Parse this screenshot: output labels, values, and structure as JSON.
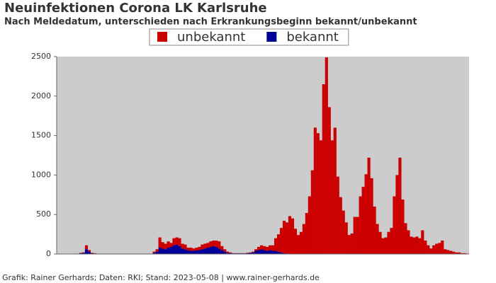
{
  "chart_data": {
    "type": "stacked-bar",
    "title": "Neuinfektionen Corona LK Karlsruhe",
    "subtitle": "Nach Meldedatum, unterschieden nach Erkrankungsbeginn bekannt/unbekannt",
    "footer": "Grafik: Rainer Gerhards; Daten: RKI; Stand: 2023-05-08 | www.rainer-gerhards.de",
    "ylim": [
      0,
      2500
    ],
    "yticks": [
      0,
      500,
      1000,
      1500,
      2000,
      2500
    ],
    "grid": false,
    "background": "#cccccc",
    "series": [
      {
        "name": "unbekannt",
        "color": "#cc0000",
        "values": [
          0,
          0,
          0,
          0,
          0,
          0,
          0,
          0,
          5,
          5,
          50,
          20,
          5,
          5,
          0,
          0,
          0,
          0,
          0,
          0,
          0,
          0,
          0,
          0,
          0,
          0,
          0,
          0,
          0,
          0,
          0,
          0,
          0,
          0,
          15,
          30,
          130,
          80,
          70,
          80,
          50,
          90,
          90,
          100,
          60,
          60,
          35,
          40,
          30,
          35,
          40,
          60,
          60,
          60,
          70,
          70,
          80,
          90,
          50,
          30,
          15,
          10,
          2,
          2,
          2,
          2,
          2,
          5,
          5,
          10,
          20,
          40,
          50,
          50,
          50,
          60,
          70,
          160,
          220,
          310,
          410,
          395,
          480,
          450,
          320,
          240,
          280,
          380,
          520,
          730,
          1060,
          1600,
          1530,
          1440,
          2150,
          2490,
          1860,
          1440,
          1600,
          980,
          720,
          550,
          400,
          240,
          260,
          470,
          470,
          730,
          850,
          1010,
          1220,
          960,
          600,
          380,
          280,
          200,
          210,
          280,
          330,
          730,
          1000,
          1220,
          690,
          390,
          300,
          220,
          210,
          220,
          200,
          300,
          170,
          110,
          70,
          110,
          130,
          140,
          170,
          60,
          50,
          40,
          30,
          20,
          20,
          10,
          10,
          5
        ]
      },
      {
        "name": "bekannt",
        "color": "#000099",
        "values": [
          0,
          0,
          0,
          0,
          0,
          0,
          0,
          0,
          10,
          15,
          60,
          30,
          10,
          5,
          5,
          0,
          5,
          0,
          5,
          0,
          5,
          0,
          5,
          0,
          5,
          0,
          5,
          0,
          5,
          0,
          5,
          0,
          5,
          0,
          15,
          30,
          80,
          70,
          60,
          80,
          90,
          110,
          120,
          100,
          70,
          60,
          45,
          40,
          40,
          45,
          50,
          60,
          70,
          80,
          90,
          100,
          90,
          70,
          50,
          30,
          15,
          10,
          8,
          8,
          8,
          8,
          8,
          10,
          15,
          20,
          40,
          50,
          60,
          50,
          40,
          50,
          40,
          40,
          30,
          20,
          10,
          5,
          0,
          0,
          0,
          0,
          0,
          0,
          0,
          0,
          0,
          0,
          0,
          0,
          0,
          0,
          0,
          0,
          0,
          0,
          0,
          0,
          0,
          0,
          0,
          0,
          0,
          0,
          0,
          0,
          0,
          0,
          0,
          0,
          0,
          0,
          0,
          0,
          0,
          0,
          0,
          0,
          0,
          0,
          0,
          0,
          0,
          0,
          0,
          0,
          0,
          0,
          0,
          0,
          0,
          0,
          0,
          0,
          0,
          0,
          0,
          0,
          0,
          0,
          0,
          0
        ]
      }
    ]
  }
}
